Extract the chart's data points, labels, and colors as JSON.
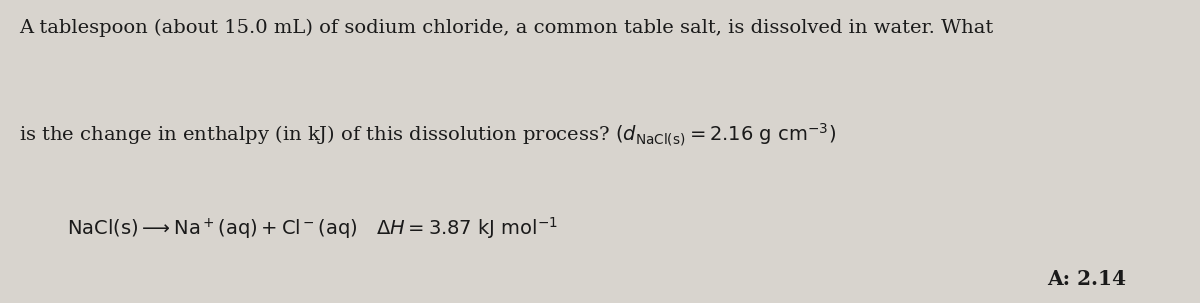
{
  "background_color": "#d8d4ce",
  "text_color": "#1a1a1a",
  "fontsize_main": 14.0,
  "fontsize_answer": 14.5,
  "fig_width": 12.0,
  "fig_height": 3.03,
  "dpi": 100,
  "line1": "A tablespoon (about 15.0 mL) of sodium chloride, a common table salt, is dissolved in water. What",
  "answer_text": "A: 2.14"
}
